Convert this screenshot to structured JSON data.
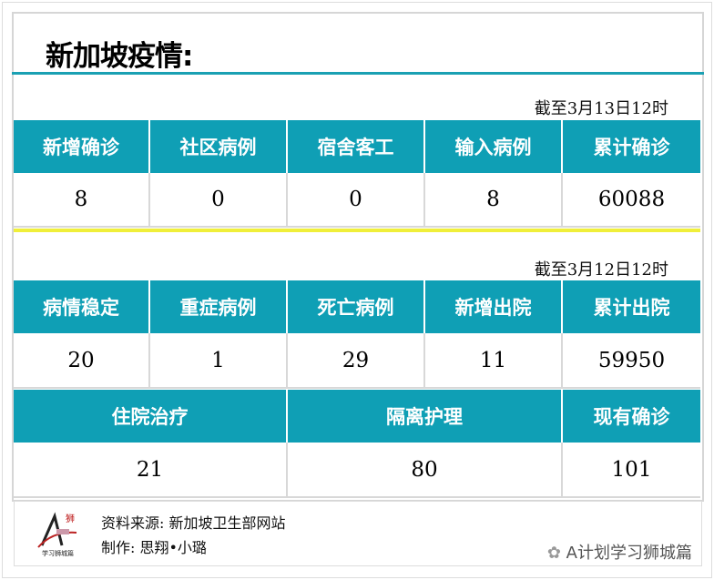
{
  "title": "新加坡疫情:",
  "section1": {
    "date": "截至3月13日12时",
    "headers": [
      "新增确诊",
      "社区病例",
      "宿舍客工",
      "输入病例",
      "累计确诊"
    ],
    "values": [
      "8",
      "0",
      "0",
      "8",
      "60088"
    ]
  },
  "section2": {
    "date": "截至3月12日12时",
    "headers": [
      "病情稳定",
      "重症病例",
      "死亡病例",
      "新增出院",
      "累计出院"
    ],
    "values": [
      "20",
      "1",
      "29",
      "11",
      "59950"
    ],
    "headers2": [
      "住院治疗",
      "隔离护理",
      "现有确诊"
    ],
    "values2": [
      "21",
      "80",
      "101"
    ]
  },
  "footer": {
    "source": "资料来源: 新加坡卫生部网站",
    "author": "制作: 思翔•小璐",
    "logo_text": "学习狮城篇",
    "watermark": "A计划学习狮城篇"
  },
  "colors": {
    "teal": "#0f9fb5",
    "yellow": "#f0ef3a"
  }
}
